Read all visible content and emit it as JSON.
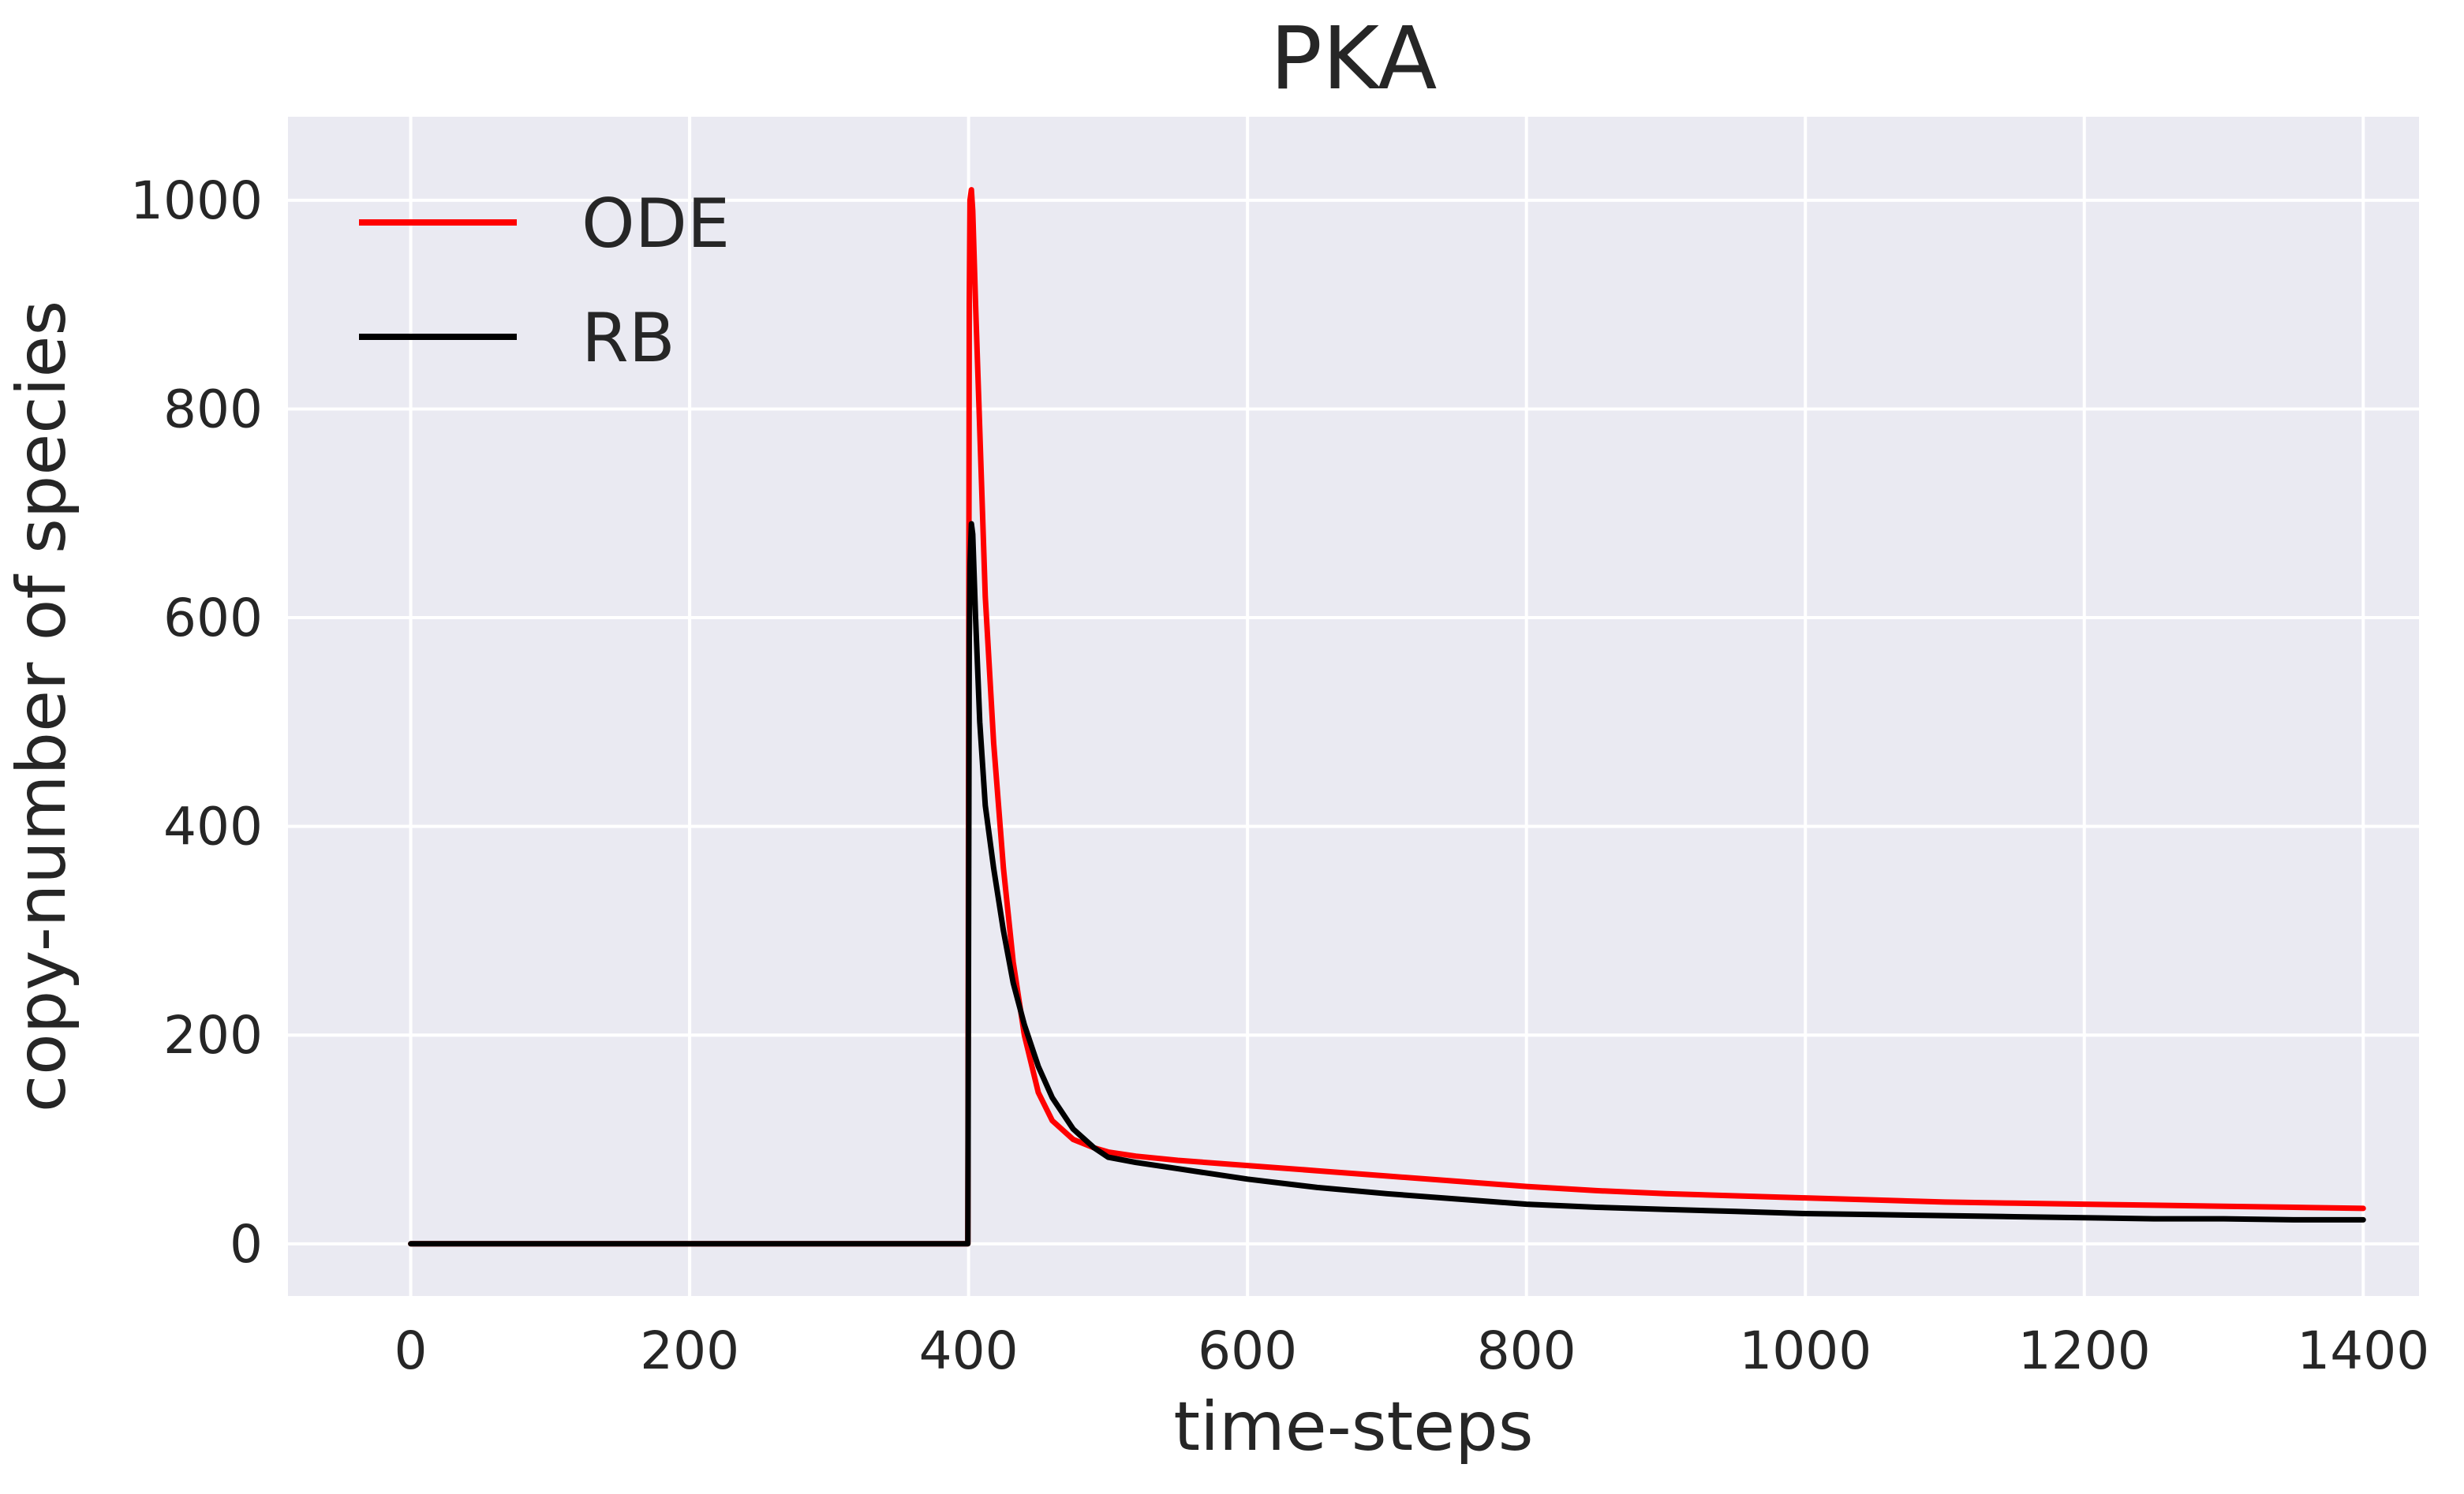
{
  "chart_data": {
    "type": "line",
    "title": "PKA",
    "xlabel": "time-steps",
    "ylabel": "copy-number of species",
    "xlim": [
      -88,
      1440
    ],
    "ylim": [
      -50,
      1080
    ],
    "xticks": [
      0,
      200,
      400,
      600,
      800,
      1000,
      1200,
      1400
    ],
    "yticks": [
      0,
      200,
      400,
      600,
      800,
      1000
    ],
    "grid": true,
    "legend_position": "top-left",
    "background_color": "#EAEAF2",
    "grid_color": "#FFFFFF",
    "series": [
      {
        "name": "ODE",
        "color": "#FF0000",
        "x": [
          0,
          100,
          200,
          300,
          399.5,
          400.5,
          401,
          402,
          403,
          405,
          408,
          412,
          418,
          425,
          432,
          440,
          450,
          460,
          475,
          490,
          500,
          520,
          550,
          600,
          650,
          700,
          750,
          800,
          850,
          900,
          950,
          1000,
          1050,
          1100,
          1150,
          1200,
          1250,
          1300,
          1350,
          1400
        ],
        "y": [
          0,
          0,
          0,
          0,
          0,
          900,
          1000,
          1010,
          990,
          900,
          780,
          620,
          480,
          360,
          270,
          200,
          145,
          118,
          100,
          92,
          88,
          84,
          80,
          75,
          70,
          65,
          60,
          55,
          51,
          48,
          46,
          44,
          42,
          40,
          39,
          38,
          37,
          36,
          35,
          34
        ]
      },
      {
        "name": "RB",
        "color": "#000000",
        "x": [
          0,
          100,
          200,
          300,
          399.5,
          400.5,
          401,
          402,
          403,
          405,
          408,
          412,
          418,
          425,
          432,
          440,
          450,
          460,
          475,
          490,
          500,
          520,
          550,
          600,
          650,
          700,
          750,
          800,
          850,
          900,
          950,
          1000,
          1050,
          1100,
          1150,
          1200,
          1250,
          1300,
          1350,
          1400
        ],
        "y": [
          0,
          0,
          0,
          0,
          0,
          580,
          650,
          690,
          680,
          600,
          500,
          420,
          360,
          300,
          250,
          210,
          170,
          140,
          110,
          92,
          83,
          78,
          72,
          62,
          54,
          48,
          43,
          38,
          35,
          33,
          31,
          29,
          28,
          27,
          26,
          25,
          24,
          24,
          23,
          23
        ]
      }
    ]
  }
}
